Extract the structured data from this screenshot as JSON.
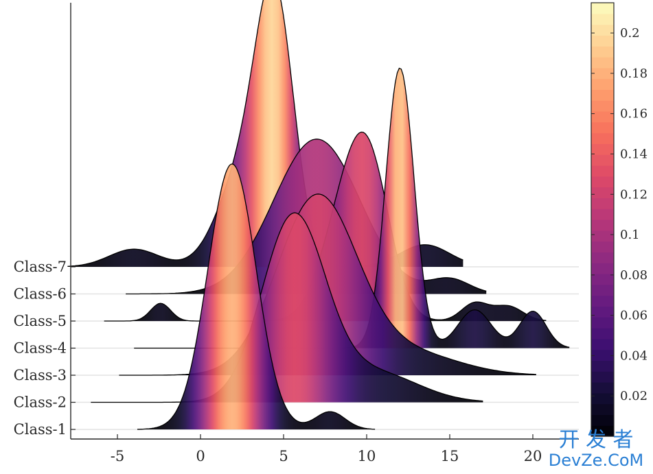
{
  "chart_data": {
    "type": "ridgeline",
    "x_range": [
      -8,
      23
    ],
    "x_ticks": [
      -5,
      0,
      5,
      10,
      15,
      20
    ],
    "categories": [
      "Class-1",
      "Class-2",
      "Class-3",
      "Class-4",
      "Class-5",
      "Class-6",
      "Class-7"
    ],
    "colorbar": {
      "min": 0,
      "max": 0.215,
      "ticks": [
        "0.02",
        "0.04",
        "0.06",
        "0.08",
        "0.1",
        "0.12",
        "0.14",
        "0.16",
        "0.18",
        "0.2"
      ],
      "colormap": "magma"
    },
    "series": [
      {
        "name": "Class-1",
        "range": [
          -3.8,
          10.5
        ],
        "components": [
          [
            0.18,
            1.9,
            1.45
          ],
          [
            0.012,
            7.8,
            0.9
          ]
        ]
      },
      {
        "name": "Class-2",
        "range": [
          -6.6,
          17.0
        ],
        "components": [
          [
            0.125,
            5.6,
            1.9
          ],
          [
            0.02,
            10.5,
            2.6
          ]
        ]
      },
      {
        "name": "Class-3",
        "range": [
          -4.9,
          20.2
        ],
        "components": [
          [
            0.12,
            7.0,
            2.4
          ],
          [
            0.015,
            12.5,
            3.0
          ]
        ]
      },
      {
        "name": "Class-4",
        "range": [
          -4.0,
          22.2
        ],
        "components": [
          [
            0.19,
            12.0,
            0.85
          ],
          [
            0.026,
            16.5,
            1.0
          ],
          [
            0.025,
            20.0,
            0.8
          ]
        ]
      },
      {
        "name": "Class-5",
        "range": [
          -5.8,
          20.8
        ],
        "components": [
          [
            0.105,
            10.1,
            1.3
          ],
          [
            0.05,
            8.3,
            1.3
          ],
          [
            0.012,
            -2.4,
            0.6
          ],
          [
            0.012,
            16.5,
            0.8
          ],
          [
            0.01,
            18.5,
            0.9
          ]
        ]
      },
      {
        "name": "Class-6",
        "range": [
          -4.5,
          17.2
        ],
        "components": [
          [
            0.105,
            7.0,
            2.6
          ],
          [
            0.01,
            15.0,
            1.2
          ]
        ]
      },
      {
        "name": "Class-7",
        "range": [
          -8.0,
          15.8
        ],
        "components": [
          [
            0.17,
            4.5,
            1.15
          ],
          [
            0.06,
            2.5,
            1.5
          ],
          [
            0.012,
            -4.0,
            1.5
          ],
          [
            0.015,
            13.5,
            1.5
          ]
        ]
      }
    ]
  },
  "watermark": {
    "line1": "开 发 者",
    "line2": "DevZe.CoM"
  }
}
